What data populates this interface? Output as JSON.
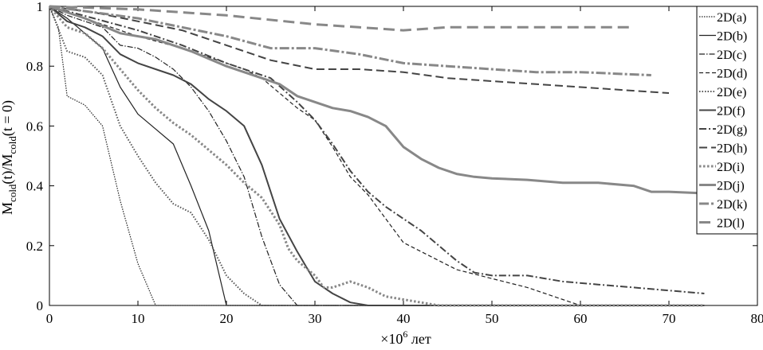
{
  "chart_data": {
    "type": "line",
    "title": "",
    "xlabel": "×10",
    "xlabel_sup": "6",
    "xlabel_unit": " лет",
    "ylabel_parts": {
      "m1": "M",
      "sub1": "cold",
      "mid": "(t)/M",
      "sub2": "cold",
      "end": "(t = 0)"
    },
    "xlim": [
      0,
      80
    ],
    "ylim": [
      0,
      1
    ],
    "xticks": [
      "0",
      "10",
      "20",
      "30",
      "40",
      "50",
      "60",
      "70",
      "80"
    ],
    "yticks": [
      "0",
      "0.2",
      "0.4",
      "0.6",
      "0.8",
      "1"
    ],
    "grid": false,
    "legend_position": "top-right",
    "series": [
      {
        "name": "2D(a)",
        "color": "#222222",
        "dash": "1.5,1.5",
        "width": 1.2,
        "x": [
          0,
          1,
          2,
          4,
          6,
          8,
          10,
          12,
          74
        ],
        "y": [
          1.0,
          0.93,
          0.7,
          0.67,
          0.6,
          0.35,
          0.14,
          0.0,
          0.0
        ]
      },
      {
        "name": "2D(b)",
        "color": "#222222",
        "dash": "",
        "width": 1.2,
        "x": [
          0,
          2,
          4,
          6,
          8,
          10,
          12,
          14,
          16,
          18,
          20,
          74
        ],
        "y": [
          1.0,
          0.96,
          0.91,
          0.86,
          0.73,
          0.64,
          0.59,
          0.54,
          0.4,
          0.25,
          0.0,
          0.0
        ]
      },
      {
        "name": "2D(c)",
        "color": "#222222",
        "dash": "7,2,1.5,2",
        "width": 1.2,
        "x": [
          0,
          2,
          4,
          6,
          8,
          10,
          12,
          14,
          16,
          18,
          20,
          22,
          24,
          26,
          28,
          74
        ],
        "y": [
          1.0,
          0.97,
          0.95,
          0.93,
          0.87,
          0.86,
          0.83,
          0.79,
          0.73,
          0.65,
          0.55,
          0.43,
          0.23,
          0.07,
          0.0,
          0.0
        ]
      },
      {
        "name": "2D(d)",
        "color": "#222222",
        "dash": "5,3",
        "width": 1.2,
        "x": [
          0,
          5,
          10,
          15,
          20,
          22,
          24,
          26,
          28,
          30,
          32,
          34,
          36,
          38,
          40,
          42,
          46,
          50,
          54,
          58,
          60,
          74
        ],
        "y": [
          1.0,
          0.95,
          0.9,
          0.86,
          0.81,
          0.79,
          0.76,
          0.71,
          0.66,
          0.62,
          0.53,
          0.43,
          0.37,
          0.29,
          0.21,
          0.18,
          0.12,
          0.09,
          0.06,
          0.02,
          0.0,
          0.0
        ]
      },
      {
        "name": "2D(e)",
        "color": "#555555",
        "dash": "1.5,2",
        "width": 2,
        "x": [
          0,
          2,
          4,
          6,
          8,
          10,
          12,
          14,
          16,
          18,
          20,
          22,
          24,
          26,
          74
        ],
        "y": [
          1.0,
          0.85,
          0.83,
          0.77,
          0.6,
          0.5,
          0.41,
          0.34,
          0.31,
          0.22,
          0.1,
          0.04,
          0.0,
          0.0,
          0.0
        ]
      },
      {
        "name": "2D(f)",
        "color": "#444444",
        "dash": "",
        "width": 2,
        "x": [
          0,
          2,
          4,
          6,
          8,
          10,
          12,
          14,
          16,
          18,
          20,
          22,
          24,
          26,
          28,
          30,
          32,
          34,
          36,
          74
        ],
        "y": [
          1.0,
          0.95,
          0.93,
          0.9,
          0.84,
          0.81,
          0.79,
          0.77,
          0.74,
          0.69,
          0.65,
          0.6,
          0.47,
          0.29,
          0.18,
          0.08,
          0.04,
          0.01,
          0.0,
          0.0
        ]
      },
      {
        "name": "2D(g)",
        "color": "#444444",
        "dash": "9,3,2,3",
        "width": 2,
        "x": [
          0,
          5,
          10,
          15,
          20,
          25,
          28,
          30,
          32,
          34,
          36,
          38,
          40,
          42,
          44,
          46,
          48,
          50,
          54,
          58,
          62,
          66,
          70,
          74
        ],
        "y": [
          1.0,
          0.96,
          0.92,
          0.87,
          0.81,
          0.76,
          0.68,
          0.62,
          0.54,
          0.45,
          0.38,
          0.33,
          0.29,
          0.25,
          0.2,
          0.15,
          0.11,
          0.1,
          0.1,
          0.08,
          0.07,
          0.06,
          0.05,
          0.04
        ]
      },
      {
        "name": "2D(h)",
        "color": "#444444",
        "dash": "10,5",
        "width": 2,
        "x": [
          0,
          5,
          10,
          15,
          20,
          25,
          30,
          35,
          40,
          45,
          50,
          55,
          60,
          65,
          70
        ],
        "y": [
          1.0,
          0.98,
          0.95,
          0.92,
          0.87,
          0.82,
          0.79,
          0.79,
          0.78,
          0.76,
          0.75,
          0.74,
          0.73,
          0.72,
          0.71
        ]
      },
      {
        "name": "2D(i)",
        "color": "#888888",
        "dash": "2.5,2.5",
        "width": 3,
        "x": [
          0,
          2,
          4,
          6,
          8,
          10,
          12,
          14,
          16,
          18,
          20,
          22,
          24,
          26,
          27,
          28,
          30,
          31,
          32,
          34,
          36,
          38,
          40,
          44,
          74
        ],
        "y": [
          1.0,
          0.93,
          0.91,
          0.86,
          0.79,
          0.72,
          0.66,
          0.61,
          0.57,
          0.52,
          0.47,
          0.41,
          0.36,
          0.27,
          0.19,
          0.15,
          0.1,
          0.06,
          0.06,
          0.08,
          0.06,
          0.03,
          0.02,
          0.0,
          0.0
        ]
      },
      {
        "name": "2D(j)",
        "color": "#888888",
        "dash": "",
        "width": 3,
        "x": [
          0,
          4,
          8,
          12,
          16,
          20,
          24,
          26,
          28,
          30,
          32,
          34,
          36,
          38,
          40,
          42,
          44,
          46,
          48,
          50,
          54,
          58,
          62,
          66,
          68,
          70,
          74
        ],
        "y": [
          1.0,
          0.96,
          0.91,
          0.89,
          0.85,
          0.8,
          0.76,
          0.74,
          0.7,
          0.68,
          0.66,
          0.65,
          0.63,
          0.6,
          0.53,
          0.49,
          0.46,
          0.44,
          0.43,
          0.425,
          0.42,
          0.41,
          0.41,
          0.4,
          0.38,
          0.38,
          0.375
        ]
      },
      {
        "name": "2D(k)",
        "color": "#888888",
        "dash": "12,3,3,3",
        "width": 3,
        "x": [
          0,
          5,
          10,
          15,
          20,
          25,
          30,
          35,
          40,
          45,
          50,
          55,
          60,
          68
        ],
        "y": [
          1.0,
          0.98,
          0.96,
          0.93,
          0.9,
          0.86,
          0.86,
          0.84,
          0.81,
          0.8,
          0.79,
          0.78,
          0.78,
          0.77
        ]
      },
      {
        "name": "2D(l)",
        "color": "#888888",
        "dash": "14,7",
        "width": 3,
        "x": [
          0,
          10,
          20,
          30,
          35,
          40,
          45,
          50,
          55,
          60,
          66
        ],
        "y": [
          1.0,
          0.99,
          0.97,
          0.94,
          0.93,
          0.92,
          0.93,
          0.93,
          0.93,
          0.93,
          0.93
        ]
      }
    ]
  }
}
